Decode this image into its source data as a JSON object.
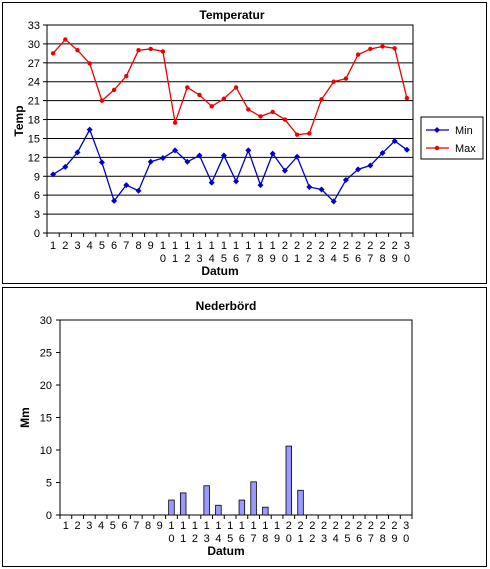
{
  "chart_data": [
    {
      "type": "line",
      "title": "Temperatur",
      "xlabel": "Datum",
      "ylabel": "Temp",
      "ylim": [
        0,
        33
      ],
      "yticks": [
        0,
        3,
        6,
        9,
        12,
        15,
        18,
        21,
        24,
        27,
        30,
        33
      ],
      "grid": "horizontal",
      "legend": "right",
      "categories": [
        "1",
        "2",
        "3",
        "4",
        "5",
        "6",
        "7",
        "8",
        "9",
        "10",
        "11",
        "12",
        "13",
        "14",
        "15",
        "16",
        "17",
        "18",
        "19",
        "20",
        "21",
        "22",
        "23",
        "24",
        "25",
        "26",
        "27",
        "28",
        "29",
        "30"
      ],
      "series": [
        {
          "name": "Min",
          "color": "#0000cc",
          "marker": "diamond",
          "values": [
            9.3,
            10.5,
            12.8,
            16.4,
            11.2,
            5.1,
            7.6,
            6.7,
            11.3,
            11.9,
            13.1,
            11.3,
            12.3,
            8.0,
            12.3,
            8.2,
            13.1,
            7.6,
            12.6,
            9.9,
            12.1,
            7.3,
            6.9,
            5.0,
            8.4,
            10.1,
            10.7,
            12.7,
            14.6,
            13.2
          ]
        },
        {
          "name": "Max",
          "color": "#ee0000",
          "marker": "dot",
          "values": [
            28.5,
            30.7,
            29.0,
            26.9,
            21.0,
            22.7,
            24.9,
            29.0,
            29.2,
            28.8,
            17.5,
            23.1,
            21.9,
            20.1,
            21.3,
            23.1,
            19.6,
            18.5,
            19.2,
            18.0,
            15.6,
            15.8,
            21.2,
            24.0,
            24.5,
            28.3,
            29.2,
            29.6,
            29.3,
            21.4
          ]
        }
      ]
    },
    {
      "type": "bar",
      "title": "Nederbörd",
      "xlabel": "Datum",
      "ylabel": "Mm",
      "ylim": [
        0,
        30
      ],
      "yticks": [
        0,
        5,
        10,
        15,
        20,
        25,
        30
      ],
      "grid": "off",
      "bar_color": "#9999ff",
      "categories": [
        "1",
        "2",
        "3",
        "4",
        "5",
        "6",
        "7",
        "8",
        "9",
        "10",
        "11",
        "12",
        "13",
        "14",
        "15",
        "16",
        "17",
        "18",
        "19",
        "20",
        "21",
        "22",
        "23",
        "24",
        "25",
        "26",
        "27",
        "28",
        "29",
        "30"
      ],
      "values": [
        0,
        0,
        0,
        0,
        0,
        0,
        0,
        0,
        0,
        2.3,
        3.4,
        0,
        4.5,
        1.5,
        0,
        2.3,
        5.1,
        1.2,
        0,
        10.6,
        3.8,
        0,
        0,
        0,
        0,
        0,
        0,
        0,
        0,
        0
      ]
    }
  ]
}
